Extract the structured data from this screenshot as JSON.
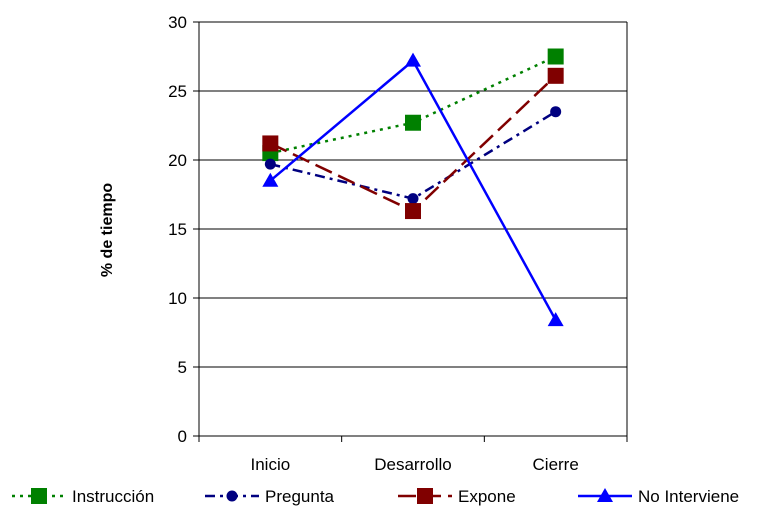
{
  "chart_data": {
    "type": "line",
    "categories": [
      "Inicio",
      "Desarrollo",
      "Cierre"
    ],
    "ylabel": "% de tiempo",
    "xlabel": "",
    "ylim": [
      0,
      30
    ],
    "yticks": [
      0,
      5,
      10,
      15,
      20,
      25,
      30
    ],
    "grid": "horizontal",
    "legend_position": "bottom",
    "series": [
      {
        "name": "Instrucción",
        "values": [
          20.5,
          22.7,
          27.5
        ],
        "color": "#008000",
        "marker": "square",
        "dash": "dotted"
      },
      {
        "name": "Pregunta",
        "values": [
          19.7,
          17.2,
          23.5
        ],
        "color": "#000080",
        "marker": "circle",
        "dash": "dashdot"
      },
      {
        "name": "Expone",
        "values": [
          21.2,
          16.3,
          26.1
        ],
        "color": "#800000",
        "marker": "square",
        "dash": "longdash"
      },
      {
        "name": "No Interviene",
        "values": [
          18.5,
          27.2,
          8.4
        ],
        "color": "#0000FF",
        "marker": "triangle",
        "dash": "solid"
      }
    ]
  }
}
